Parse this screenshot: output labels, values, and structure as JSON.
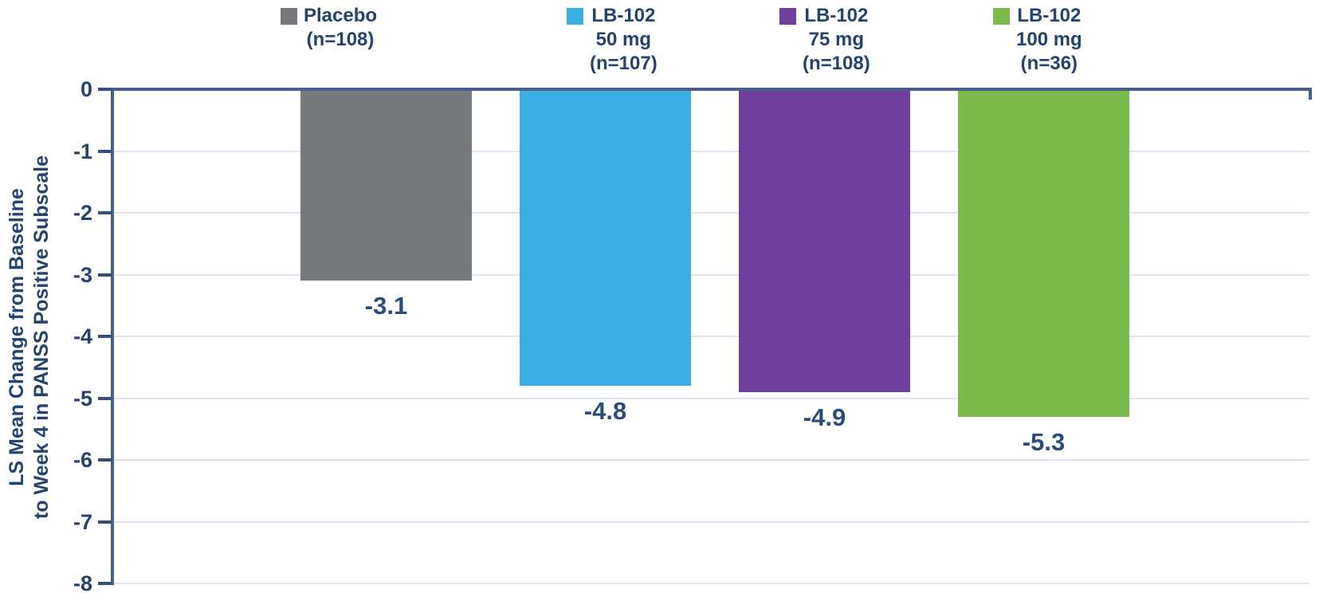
{
  "chart_data": {
    "type": "bar",
    "title": "",
    "ylabel": "LS Mean Change from Baseline to Week 4 in PANSS Positive Subscale",
    "ylabel_line1": "LS Mean Change from Baseline",
    "ylabel_line2": "to Week 4 in PANSS Positive Subscale",
    "xlabel": "",
    "ylim": [
      -8,
      0
    ],
    "ytick_labels": [
      "0",
      "-1",
      "-2",
      "-3",
      "-4",
      "-5",
      "-6",
      "-7",
      "-8"
    ],
    "grid": true,
    "legend_position": "top",
    "categories": [
      "Placebo (n=108)",
      "LB-102 50 mg (n=107)",
      "LB-102 75 mg (n=108)",
      "LB-102 100 mg (n=36)"
    ],
    "values": [
      -3.1,
      -4.8,
      -4.9,
      -5.3
    ],
    "series": [
      {
        "name": "Placebo (n=108)",
        "legend_lines": [
          "Placebo",
          "(n=108)"
        ],
        "value": -3.1,
        "label": "-3.1",
        "color": "#77787B"
      },
      {
        "name": "LB-102 50 mg (n=107)",
        "legend_lines": [
          "LB-102",
          "50 mg",
          "(n=107)"
        ],
        "value": -4.8,
        "label": "-4.8",
        "color": "#3BAEE3"
      },
      {
        "name": "LB-102 75 mg (n=108)",
        "legend_lines": [
          "LB-102",
          "75 mg",
          "(n=108)"
        ],
        "value": -4.9,
        "label": "-4.9",
        "color": "#6F3F9E"
      },
      {
        "name": "LB-102 100 mg (n=36)",
        "legend_lines": [
          "LB-102",
          "100 mg",
          "(n=36)"
        ],
        "value": -5.3,
        "label": "-5.3",
        "color": "#7ABB4B"
      }
    ],
    "colors": {
      "navy_text": "#24436E",
      "value_label_text": "#2A4C7C",
      "axis_line": "#44608C",
      "gridline": "#DCE6F2",
      "bar_placebo": "#77787B",
      "bar_lb102_50mg": "#3BAEE3",
      "bar_lb102_75mg": "#6F3F9E",
      "bar_lb102_100mg": "#7ABB4B"
    }
  }
}
